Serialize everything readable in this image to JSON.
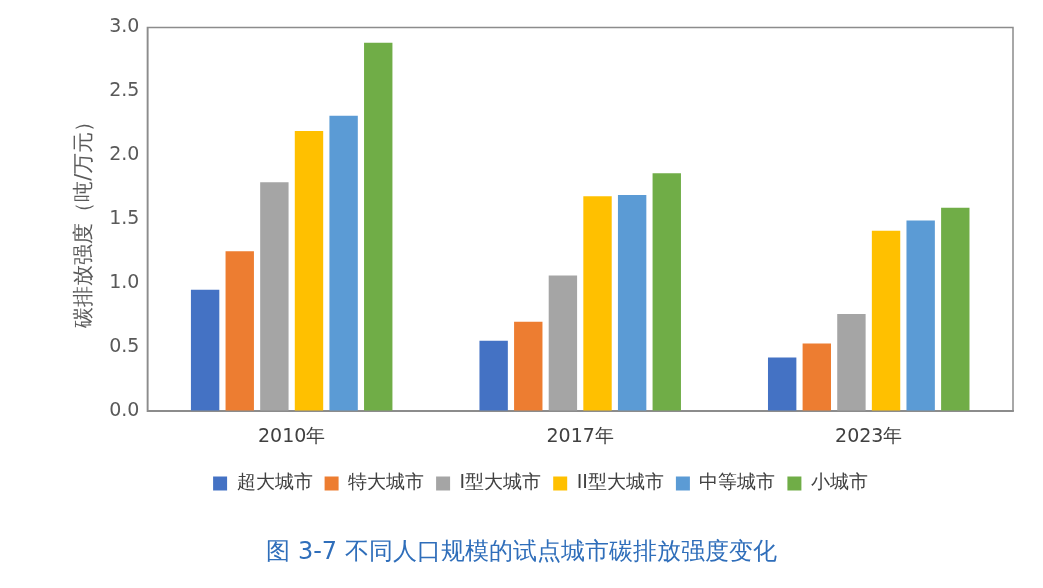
{
  "chart_data": {
    "type": "bar",
    "title": "图 3-7 不同人口规模的试点城市碳排放强度变化",
    "ylabel": "碳排放强度（吨/万元）",
    "categories": [
      "2010年",
      "2017年",
      "2023年"
    ],
    "series": [
      {
        "name": "超大城市",
        "color": "#4472c4",
        "values": [
          0.95,
          0.55,
          0.42
        ]
      },
      {
        "name": "特大城市",
        "color": "#ed7d31",
        "values": [
          1.25,
          0.7,
          0.53
        ]
      },
      {
        "name": "I型大城市",
        "color": "#a5a5a5",
        "values": [
          1.79,
          1.06,
          0.76
        ]
      },
      {
        "name": "II型大城市",
        "color": "#ffc000",
        "values": [
          2.19,
          1.68,
          1.41
        ]
      },
      {
        "name": "中等城市",
        "color": "#5b9bd5",
        "values": [
          2.31,
          1.69,
          1.49
        ]
      },
      {
        "name": "小城市",
        "color": "#70ad47",
        "values": [
          2.88,
          1.86,
          1.59
        ]
      }
    ],
    "ylim": [
      0,
      3.0
    ],
    "yticks": [
      {
        "value": 0,
        "label": "0.0"
      },
      0.5,
      {
        "value": 1,
        "label": "1.0"
      },
      1.5,
      {
        "value": 2,
        "label": "2.0"
      },
      2.5,
      {
        "value": 3,
        "label": "3.0"
      }
    ],
    "grid": false,
    "legend": "bottom"
  }
}
